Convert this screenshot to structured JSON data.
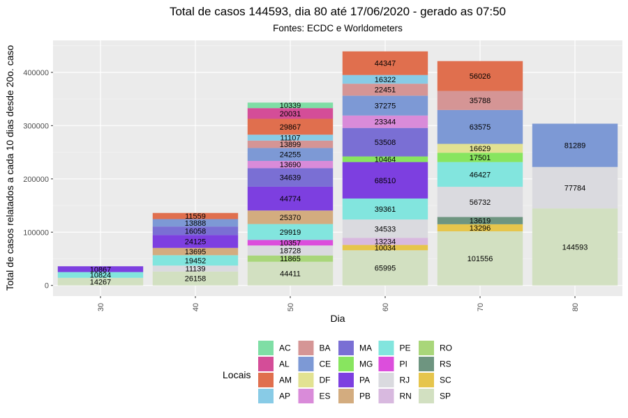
{
  "chart_data": {
    "type": "bar",
    "stacked": true,
    "title": "Total de casos 144593, dia 80 até 17/06/2020 - gerado as 07:50",
    "subtitle": "Fontes: ECDC e Worldometers",
    "xlabel": "Dia",
    "ylabel": "Total de casos relatados a cada 10 dias desde 20o. caso",
    "categories": [
      "30",
      "40",
      "50",
      "60",
      "70",
      "80"
    ],
    "ylim": [
      -20000,
      460000
    ],
    "yticks": [
      0,
      100000,
      200000,
      300000,
      400000
    ],
    "ytick_labels": [
      "0",
      "100000",
      "200000",
      "300000",
      "400000"
    ],
    "grid": true,
    "stack_order": [
      "SP",
      "SC",
      "RS",
      "RO",
      "RN",
      "RJ",
      "PI",
      "PE",
      "PB",
      "PA",
      "MG",
      "MA",
      "ES",
      "DF",
      "CE",
      "BA",
      "AP",
      "AM",
      "AL",
      "AC"
    ],
    "series": [
      {
        "name": "AC",
        "color": "#7FDEA5",
        "values": [
          0,
          0,
          10339,
          0,
          0,
          0
        ]
      },
      {
        "name": "AL",
        "color": "#D44D98",
        "values": [
          0,
          0,
          20031,
          0,
          0,
          0
        ]
      },
      {
        "name": "AM",
        "color": "#E06F4E",
        "values": [
          0,
          11559,
          29867,
          44347,
          56026,
          0
        ]
      },
      {
        "name": "AP",
        "color": "#88CBE6",
        "values": [
          0,
          0,
          11107,
          16322,
          0,
          0
        ]
      },
      {
        "name": "BA",
        "color": "#D59595",
        "values": [
          0,
          0,
          13899,
          22451,
          35788,
          0
        ]
      },
      {
        "name": "CE",
        "color": "#7D99D5",
        "values": [
          0,
          13888,
          24255,
          37275,
          63575,
          81289
        ]
      },
      {
        "name": "DF",
        "color": "#E2E292",
        "values": [
          0,
          0,
          0,
          0,
          16629,
          0
        ]
      },
      {
        "name": "ES",
        "color": "#D98BD9",
        "values": [
          0,
          0,
          13690,
          23344,
          0,
          0
        ]
      },
      {
        "name": "MA",
        "color": "#7A6FD4",
        "values": [
          0,
          16058,
          34639,
          53508,
          0,
          0
        ]
      },
      {
        "name": "MG",
        "color": "#88E55F",
        "values": [
          0,
          0,
          0,
          10464,
          17501,
          0
        ]
      },
      {
        "name": "PA",
        "color": "#7D3FE0",
        "values": [
          10867,
          24125,
          44774,
          68510,
          0,
          0
        ]
      },
      {
        "name": "PB",
        "color": "#D3AC7F",
        "values": [
          0,
          13695,
          25370,
          0,
          0,
          0
        ]
      },
      {
        "name": "PE",
        "color": "#82E5DE",
        "values": [
          10824,
          19452,
          29919,
          39361,
          46427,
          0
        ]
      },
      {
        "name": "PI",
        "color": "#DC4EDC",
        "values": [
          0,
          0,
          10357,
          0,
          0,
          0
        ]
      },
      {
        "name": "RJ",
        "color": "#DADADF",
        "values": [
          0,
          11139,
          18728,
          34533,
          56732,
          77784
        ]
      },
      {
        "name": "RN",
        "color": "#D8B9DF",
        "values": [
          0,
          0,
          0,
          13234,
          0,
          0
        ]
      },
      {
        "name": "RO",
        "color": "#A9D67A",
        "values": [
          0,
          0,
          11865,
          0,
          0,
          0
        ]
      },
      {
        "name": "RS",
        "color": "#6E9580",
        "values": [
          0,
          0,
          0,
          0,
          13619,
          0
        ]
      },
      {
        "name": "SC",
        "color": "#E6C54C",
        "values": [
          0,
          0,
          0,
          10034,
          13296,
          0
        ]
      },
      {
        "name": "SP",
        "color": "#D2E0C1",
        "values": [
          14267,
          26158,
          44411,
          65995,
          101556,
          144593
        ]
      }
    ],
    "legend": {
      "title": "Locais",
      "position": "bottom"
    }
  }
}
